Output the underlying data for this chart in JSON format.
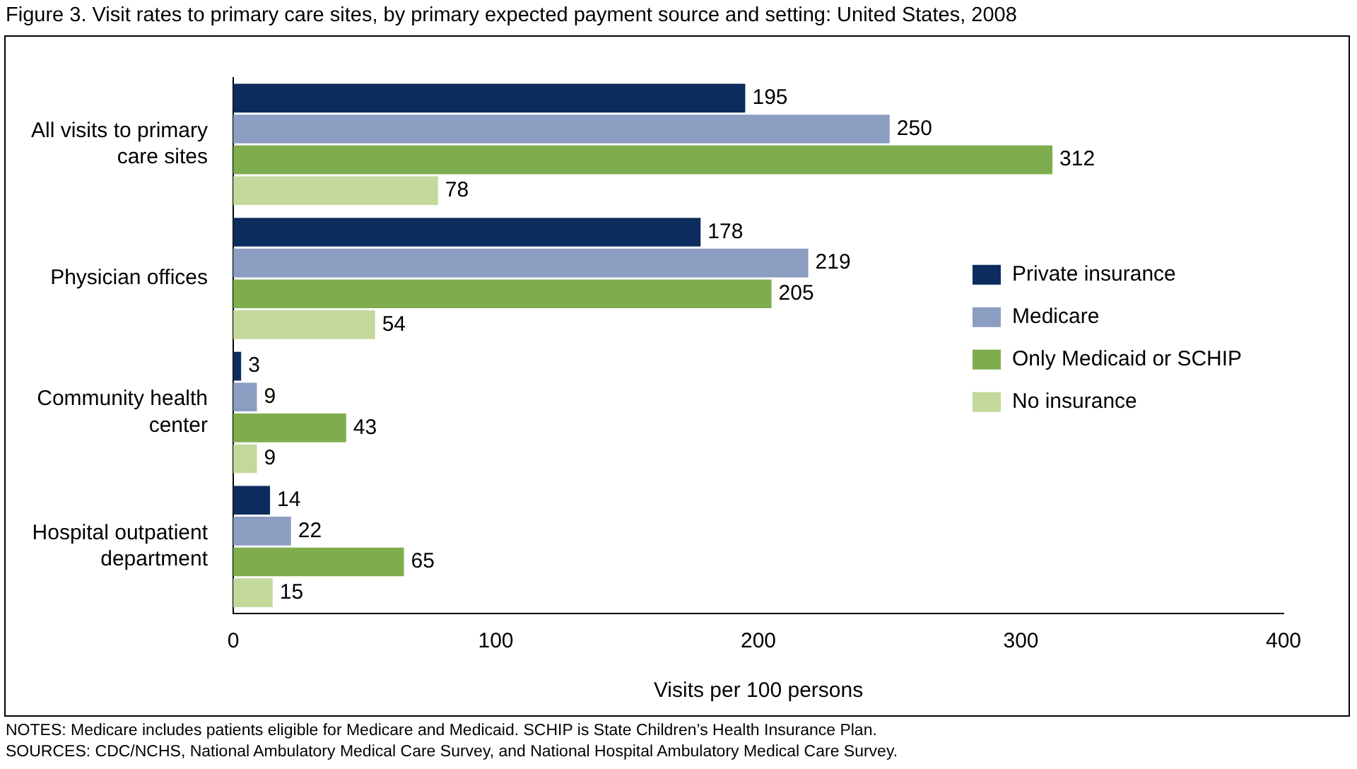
{
  "chart_data": {
    "type": "bar",
    "orientation": "horizontal",
    "title": "Figure 3. Visit rates to primary care sites, by primary expected payment source and setting: United States, 2008",
    "xlabel": "Visits per 100 persons",
    "categories": [
      "All visits to primary care sites",
      "Physician offices",
      "Community health center",
      "Hospital outpatient department"
    ],
    "series": [
      {
        "name": "Private insurance",
        "color": "#0d2c5e",
        "values": [
          195,
          178,
          3,
          14
        ]
      },
      {
        "name": "Medicare",
        "color": "#8c9dc2",
        "values": [
          250,
          219,
          9,
          22
        ]
      },
      {
        "name": "Only Medicaid or SCHIP",
        "color": "#7fad4e",
        "values": [
          312,
          205,
          43,
          65
        ]
      },
      {
        "name": "No insurance",
        "color": "#c3d89b",
        "values": [
          78,
          54,
          9,
          15
        ]
      }
    ],
    "xlim": [
      0,
      400
    ],
    "xticks": [
      0,
      100,
      200,
      300,
      400
    ],
    "grid": false,
    "legend": "right",
    "data_labels": true,
    "annotations": [
      "NOTES: Medicare includes patients eligible for Medicare and Medicaid.  SCHIP is State Children’s Health Insurance Plan.",
      "SOURCES: CDC/NCHS, National Ambulatory Medical Care Survey, and National Hospital Ambulatory Medical Care Survey."
    ]
  }
}
